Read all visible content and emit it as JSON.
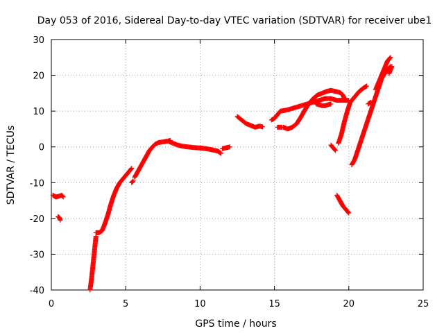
{
  "chart_data": {
    "type": "scatter",
    "title": "Day 053 of 2016, Sidereal Day-to-day VTEC variation (SDTVAR) for receiver ube1",
    "xlabel": "GPS time / hours",
    "ylabel": "SDTVAR / TECUs",
    "xlim": [
      0,
      25
    ],
    "ylim": [
      -40,
      30
    ],
    "xticks": [
      0,
      5,
      10,
      15,
      20,
      25
    ],
    "yticks": [
      -40,
      -30,
      -20,
      -10,
      0,
      10,
      20,
      30
    ],
    "grid": true,
    "marker": "+",
    "color": "#ff0000",
    "segments": [
      [
        [
          0.1,
          -13.5
        ],
        [
          0.3,
          -14.0
        ],
        [
          0.5,
          -13.8
        ],
        [
          0.7,
          -13.5
        ],
        [
          0.8,
          -14.0
        ]
      ],
      [
        [
          0.45,
          -19.5
        ],
        [
          0.55,
          -19.8
        ],
        [
          0.6,
          -20.5
        ]
      ],
      [
        [
          2.6,
          -40.0
        ],
        [
          2.7,
          -37.0
        ],
        [
          2.8,
          -33.0
        ],
        [
          2.9,
          -29.0
        ],
        [
          3.0,
          -25.0
        ]
      ],
      [
        [
          3.0,
          -24.0
        ],
        [
          3.2,
          -24.0
        ],
        [
          3.4,
          -23.5
        ],
        [
          3.6,
          -21.5
        ],
        [
          3.8,
          -19.0
        ],
        [
          4.0,
          -16.0
        ],
        [
          4.2,
          -13.5
        ],
        [
          4.4,
          -11.5
        ],
        [
          4.6,
          -10.0
        ],
        [
          4.8,
          -9.0
        ],
        [
          5.0,
          -8.0
        ],
        [
          5.2,
          -7.0
        ],
        [
          5.4,
          -6.0
        ]
      ],
      [
        [
          5.4,
          -10.0
        ],
        [
          5.5,
          -9.5
        ]
      ],
      [
        [
          5.6,
          -8.5
        ],
        [
          5.8,
          -7.0
        ],
        [
          6.0,
          -5.5
        ],
        [
          6.2,
          -4.0
        ],
        [
          6.4,
          -2.5
        ],
        [
          6.6,
          -1.0
        ],
        [
          6.8,
          0.0
        ],
        [
          7.0,
          0.8
        ],
        [
          7.2,
          1.2
        ],
        [
          7.5,
          1.4
        ],
        [
          7.8,
          1.6
        ],
        [
          8.0,
          1.8
        ]
      ],
      [
        [
          7.9,
          1.5
        ],
        [
          8.2,
          1.0
        ],
        [
          8.5,
          0.5
        ],
        [
          8.8,
          0.2
        ],
        [
          9.2,
          0.0
        ],
        [
          9.6,
          -0.2
        ],
        [
          10.0,
          -0.3
        ],
        [
          10.4,
          -0.5
        ],
        [
          10.8,
          -0.8
        ],
        [
          11.2,
          -1.2
        ],
        [
          11.4,
          -1.8
        ]
      ],
      [
        [
          11.5,
          -0.5
        ],
        [
          11.8,
          -0.2
        ],
        [
          12.0,
          0.0
        ]
      ],
      [
        [
          12.5,
          8.5
        ],
        [
          12.8,
          7.5
        ],
        [
          13.1,
          6.5
        ],
        [
          13.4,
          6.0
        ],
        [
          13.7,
          5.5
        ],
        [
          14.0,
          5.8
        ],
        [
          14.2,
          5.6
        ]
      ],
      [
        [
          14.8,
          7.5
        ],
        [
          15.0,
          8.0
        ],
        [
          15.2,
          9.0
        ],
        [
          15.4,
          10.0
        ],
        [
          15.7,
          10.2
        ],
        [
          16.0,
          10.5
        ],
        [
          16.4,
          11.0
        ],
        [
          16.8,
          11.5
        ],
        [
          17.2,
          12.0
        ],
        [
          17.6,
          12.5
        ],
        [
          18.0,
          13.0
        ],
        [
          18.4,
          13.5
        ],
        [
          18.8,
          13.5
        ],
        [
          19.2,
          13.0
        ],
        [
          19.6,
          13.0
        ],
        [
          20.0,
          13.0
        ]
      ],
      [
        [
          15.2,
          5.5
        ],
        [
          15.5,
          5.5
        ]
      ],
      [
        [
          15.6,
          5.5
        ],
        [
          15.9,
          5.0
        ],
        [
          16.2,
          5.5
        ],
        [
          16.5,
          6.5
        ],
        [
          16.8,
          8.5
        ],
        [
          17.0,
          10.0
        ],
        [
          17.3,
          12.0
        ],
        [
          17.6,
          13.5
        ],
        [
          17.9,
          14.5
        ],
        [
          18.2,
          15.0
        ],
        [
          18.5,
          15.5
        ],
        [
          18.8,
          15.8
        ],
        [
          19.1,
          15.5
        ],
        [
          19.4,
          15.2
        ],
        [
          19.6,
          14.5
        ],
        [
          19.7,
          13.5
        ]
      ],
      [
        [
          17.8,
          12.0
        ],
        [
          18.0,
          11.8
        ],
        [
          18.2,
          11.5
        ],
        [
          18.4,
          11.5
        ],
        [
          18.6,
          11.8
        ],
        [
          18.8,
          12.0
        ]
      ],
      [
        [
          18.8,
          0.5
        ],
        [
          18.9,
          0.0
        ],
        [
          19.0,
          -0.5
        ],
        [
          19.1,
          -1.0
        ]
      ],
      [
        [
          19.2,
          -13.5
        ],
        [
          19.4,
          -15.0
        ],
        [
          19.6,
          -16.5
        ],
        [
          19.8,
          -17.5
        ],
        [
          20.0,
          -18.5
        ]
      ],
      [
        [
          19.3,
          1.0
        ],
        [
          19.5,
          3.5
        ],
        [
          19.7,
          7.0
        ],
        [
          19.9,
          10.0
        ],
        [
          20.1,
          12.5
        ],
        [
          20.4,
          14.0
        ],
        [
          20.7,
          15.5
        ],
        [
          21.0,
          16.5
        ],
        [
          21.2,
          17.0
        ]
      ],
      [
        [
          20.2,
          -5.0
        ],
        [
          20.4,
          -3.5
        ],
        [
          20.6,
          -1.0
        ],
        [
          20.8,
          1.5
        ],
        [
          21.0,
          4.0
        ],
        [
          21.2,
          6.5
        ],
        [
          21.4,
          9.0
        ],
        [
          21.6,
          11.5
        ],
        [
          21.8,
          14.0
        ],
        [
          22.0,
          16.5
        ],
        [
          22.2,
          19.0
        ],
        [
          22.4,
          20.5
        ],
        [
          22.6,
          21.5
        ],
        [
          22.8,
          22.5
        ]
      ],
      [
        [
          21.3,
          12.0
        ],
        [
          21.5,
          12.5
        ]
      ],
      [
        [
          21.8,
          16.0
        ],
        [
          22.0,
          18.0
        ],
        [
          22.2,
          20.0
        ],
        [
          22.4,
          22.0
        ],
        [
          22.6,
          24.0
        ],
        [
          22.8,
          25.0
        ]
      ],
      [
        [
          22.7,
          20.5
        ],
        [
          22.8,
          21.5
        ],
        [
          22.9,
          22.5
        ]
      ]
    ]
  }
}
